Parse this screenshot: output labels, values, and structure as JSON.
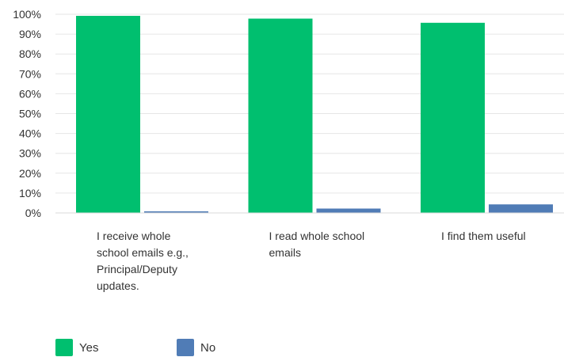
{
  "chart_data": {
    "type": "bar",
    "categories": [
      "I receive whole school emails e.g., Principal/Deputy updates.",
      "I read whole school emails",
      "I find them useful"
    ],
    "category_lines": [
      [
        "I receive whole",
        "school emails e.g.,",
        "Principal/Deputy",
        "updates."
      ],
      [
        "I read whole school",
        "emails"
      ],
      [
        "I find them useful"
      ]
    ],
    "series": [
      {
        "name": "Yes",
        "color": "#00BF6F",
        "values": [
          99.2,
          97.8,
          95.7
        ]
      },
      {
        "name": "No",
        "color": "#507CB6",
        "values": [
          0.8,
          2.2,
          4.3
        ]
      }
    ],
    "y_ticks": [
      "0%",
      "10%",
      "20%",
      "30%",
      "40%",
      "50%",
      "60%",
      "70%",
      "80%",
      "90%",
      "100%"
    ],
    "ylim": [
      0,
      100
    ],
    "grid": true,
    "legend_position": "bottom-left"
  }
}
